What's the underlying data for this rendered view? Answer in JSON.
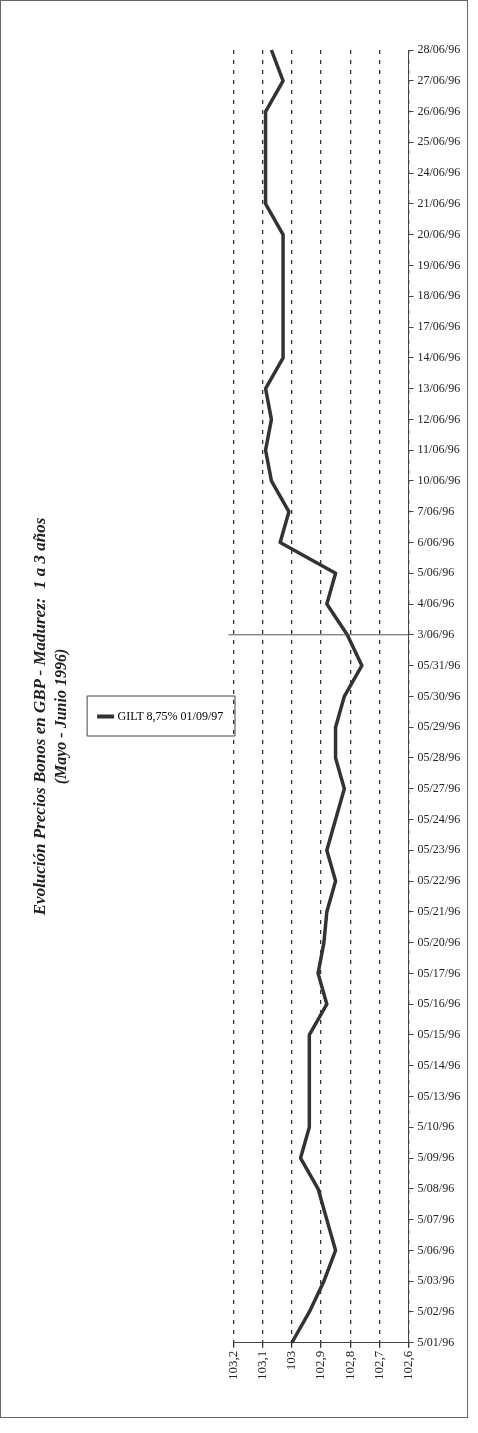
{
  "chart_data": {
    "type": "line",
    "title": "Evolución Precios Bonos en GBP - Madurez:  1 a 3 años",
    "subtitle": "(Mayo - Junio 1996)",
    "categories": [
      "28/06/96",
      "27/06/96",
      "26/06/96",
      "25/06/96",
      "24/06/96",
      "21/06/96",
      "20/06/96",
      "19/06/96",
      "18/06/96",
      "17/06/96",
      "14/06/96",
      "13/06/96",
      "12/06/96",
      "11/06/96",
      "10/06/96",
      "7/06/96",
      "6/06/96",
      "5/06/96",
      "4/06/96",
      "3/06/96",
      "05/31/96",
      "05/30/96",
      "05/29/96",
      "05/28/96",
      "05/27/96",
      "05/24/96",
      "05/23/96",
      "05/22/96",
      "05/21/96",
      "05/20/96",
      "05/17/96",
      "05/16/96",
      "05/15/96",
      "05/14/96",
      "05/13/96",
      "5/10/96",
      "5/09/96",
      "5/08/96",
      "5/07/96",
      "5/06/96",
      "5/03/96",
      "5/02/96",
      "5/01/96"
    ],
    "series": [
      {
        "name": "GILT 8,75% 01/09/97",
        "color": "#333333",
        "values": [
          103.07,
          103.03,
          103.09,
          103.09,
          103.09,
          103.09,
          103.03,
          103.03,
          103.03,
          103.03,
          103.03,
          103.09,
          103.07,
          103.09,
          103.07,
          103.01,
          103.04,
          102.85,
          102.88,
          102.81,
          102.76,
          102.82,
          102.85,
          102.85,
          102.82,
          102.85,
          102.88,
          102.85,
          102.88,
          102.89,
          102.91,
          102.88,
          102.94,
          102.94,
          102.94,
          102.94,
          102.97,
          102.91,
          102.88,
          102.85,
          102.89,
          102.94,
          103.0
        ]
      }
    ],
    "orientation": "horizontal",
    "xlim": [
      103.2,
      102.6
    ],
    "xticks": [
      {
        "value": 103.2,
        "label": "103,2"
      },
      {
        "value": 103.1,
        "label": "103,1"
      },
      103,
      {
        "value": 102.9,
        "label": "102,9"
      },
      {
        "value": 102.8,
        "label": "102,8"
      },
      {
        "value": 102.7,
        "label": "102,7"
      },
      {
        "value": 102.6,
        "label": "102,6"
      }
    ],
    "grid": "x",
    "legend": "left",
    "marker": "none",
    "line_style": "solid",
    "ref_lines": [
      {
        "axis": "y",
        "value": "3/06/96"
      }
    ]
  }
}
